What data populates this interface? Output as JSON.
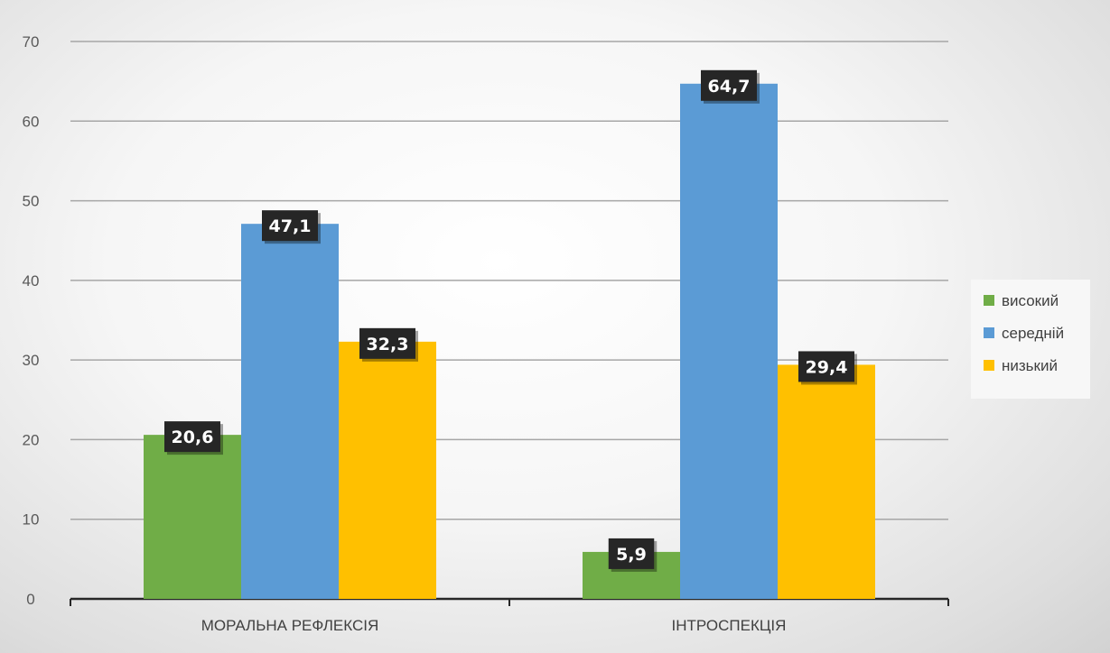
{
  "chart_data": {
    "type": "bar",
    "title": "",
    "xlabel": "",
    "ylabel": "",
    "categories": [
      "МОРАЛЬНА РЕФЛЕКСІЯ",
      "ІНТРОСПЕКЦІЯ"
    ],
    "series": [
      {
        "name": "високий",
        "color": "#70ad47",
        "values": [
          20.6,
          5.9
        ],
        "labels": [
          "20,6",
          "5,9"
        ]
      },
      {
        "name": "середній",
        "color": "#5b9bd5",
        "values": [
          47.1,
          64.7
        ],
        "labels": [
          "47,1",
          "64,7"
        ]
      },
      {
        "name": "низький",
        "color": "#ffc000",
        "values": [
          32.3,
          29.4
        ],
        "labels": [
          "32,3",
          "29,4"
        ]
      }
    ],
    "ylim": [
      0,
      70
    ],
    "yticks": [
      0,
      10,
      20,
      30,
      40,
      50,
      60,
      70
    ],
    "grid": true,
    "legend_position": "right",
    "data_label_style": {
      "background": "#262626",
      "text_color": "#ffffff"
    }
  }
}
